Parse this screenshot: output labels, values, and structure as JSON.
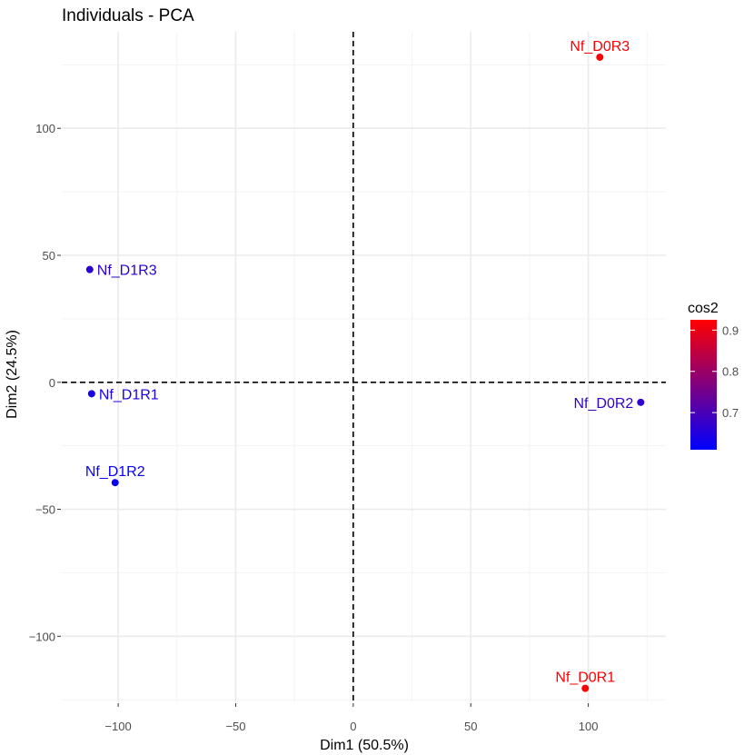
{
  "chart_data": {
    "type": "scatter",
    "title": "Individuals - PCA",
    "xlabel": "Dim1 (50.5%)",
    "ylabel": "Dim2 (24.5%)",
    "xlim": [
      -124,
      133
    ],
    "ylim": [
      -126,
      138
    ],
    "x_ticks": [
      -100,
      -50,
      0,
      50,
      100
    ],
    "x_tick_labels": [
      "−100",
      "−50",
      "0",
      "50",
      "100"
    ],
    "y_ticks": [
      -100,
      -50,
      0,
      50,
      100
    ],
    "y_tick_labels": [
      "−100",
      "−50",
      "0",
      "50",
      "100"
    ],
    "grid": true,
    "reference_lines": {
      "x": 0,
      "y": 0,
      "style": "dashed"
    },
    "points": [
      {
        "label": "Nf_D0R3",
        "x": 104.9,
        "y": 128.0,
        "cos2": 0.92,
        "label_pos": "above"
      },
      {
        "label": "Nf_D1R3",
        "x": -112.1,
        "y": 44.4,
        "cos2": 0.66,
        "label_pos": "right"
      },
      {
        "label": "Nf_D1R1",
        "x": -111.3,
        "y": -4.5,
        "cos2": 0.64,
        "label_pos": "right"
      },
      {
        "label": "Nf_D0R2",
        "x": 122.3,
        "y": -7.9,
        "cos2": 0.67,
        "label_pos": "left"
      },
      {
        "label": "Nf_D1R2",
        "x": -101.3,
        "y": -39.5,
        "cos2": 0.62,
        "label_pos": "above"
      },
      {
        "label": "Nf_D0R1",
        "x": 98.7,
        "y": -120.5,
        "cos2": 0.92,
        "label_pos": "above"
      }
    ],
    "legend": {
      "title": "cos2",
      "placement": "right",
      "min": 0.61,
      "max": 0.925,
      "ticks": [
        0.7,
        0.8,
        0.9
      ],
      "tick_labels": [
        "0.7",
        "0.8",
        "0.9"
      ],
      "low_color": "#0000ff",
      "high_color": "#ff0000"
    }
  }
}
